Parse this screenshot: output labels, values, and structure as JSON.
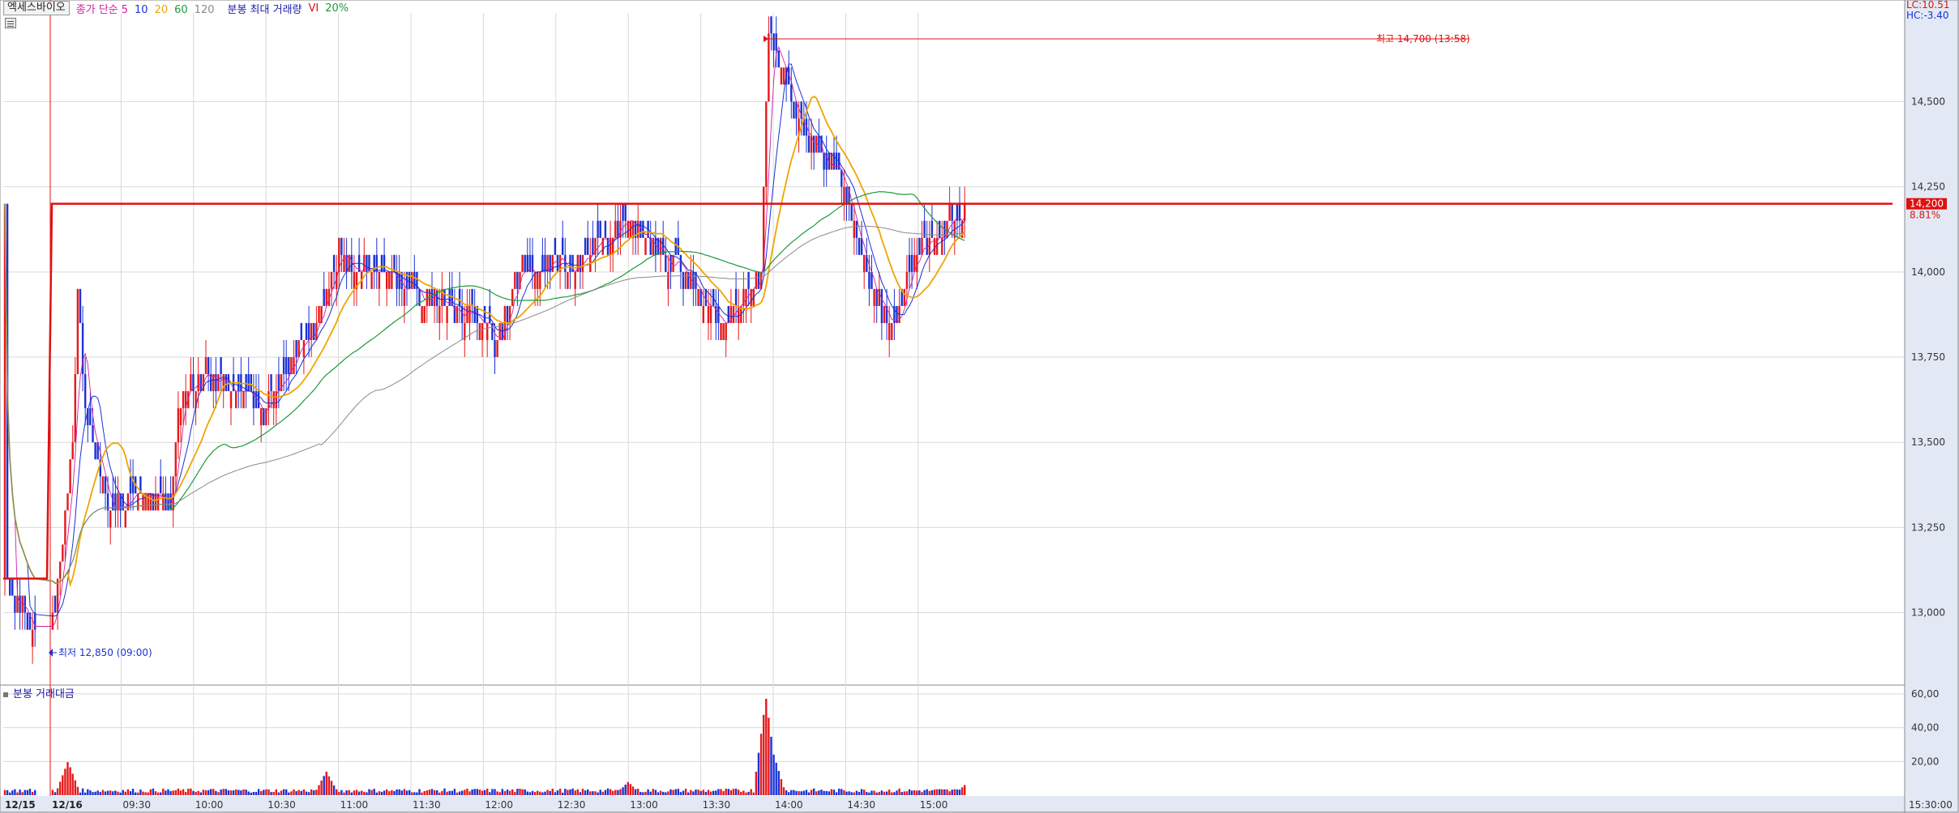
{
  "header": {
    "stock_name": "엑세스바이오",
    "ma_label": "종가 단순",
    "ma_periods": [
      "5",
      "10",
      "20",
      "60",
      "120"
    ],
    "volume_label": "분봉 최대 거래량",
    "vi_label": "VI",
    "vi_value": "20%"
  },
  "corner": {
    "lc": "LC:10.51",
    "hc": "HC:-3.40"
  },
  "annotations": {
    "high": "최고 14,700 (13:58)",
    "low": "최저 12,850 (09:00)",
    "current_price": "14,200",
    "current_change": "8.81%"
  },
  "volume_panel": {
    "title": "분봉 거래대금"
  },
  "colors": {
    "up": "#e8181a",
    "down": "#1b32d6",
    "ma5": "#d11fa2",
    "ma10": "#1b32d6",
    "ma20": "#f0a400",
    "ma60": "#1e9a3a",
    "ma120": "#8a8a8a",
    "hline": "#e01010",
    "grid": "#d9d9d9",
    "axis_bg": "#e3e9f4"
  },
  "chart_data": {
    "type": "candlestick",
    "title": "엑세스바이오",
    "interval": "1-minute",
    "price_axis": {
      "ticks": [
        "14,500",
        "14,250",
        "14,000",
        "13,750",
        "13,500",
        "13,250",
        "13,000"
      ],
      "ylim": [
        12790,
        14760
      ]
    },
    "time_axis": {
      "ticks": [
        "12/15",
        "12/16",
        "09:30",
        "10:00",
        "10:30",
        "11:00",
        "11:30",
        "12:00",
        "12:30",
        "13:00",
        "13:30",
        "14:00",
        "14:30",
        "15:00",
        "15:30:00"
      ]
    },
    "volume_axis": {
      "ticks": [
        "60,00",
        "40,00",
        "20,00"
      ],
      "ylim": [
        0,
        60
      ]
    },
    "previous_close": 13050,
    "high": 14700,
    "low": 12850,
    "last": 14200,
    "change_pct": 8.81,
    "price_path": [
      [
        "12/15",
        13100
      ],
      [
        "09:00",
        12850
      ],
      [
        "09:10",
        13500
      ],
      [
        "09:12",
        13950
      ],
      [
        "09:15",
        13600
      ],
      [
        "09:25",
        13300
      ],
      [
        "09:35",
        13350
      ],
      [
        "09:50",
        13300
      ],
      [
        "09:55",
        13650
      ],
      [
        "10:05",
        13700
      ],
      [
        "10:30",
        13600
      ],
      [
        "10:50",
        13850
      ],
      [
        "11:00",
        14050
      ],
      [
        "11:30",
        13950
      ],
      [
        "12:00",
        13850
      ],
      [
        "12:05",
        13780
      ],
      [
        "12:15",
        14000
      ],
      [
        "12:45",
        14050
      ],
      [
        "13:00",
        14150
      ],
      [
        "13:15",
        14050
      ],
      [
        "13:40",
        13850
      ],
      [
        "13:55",
        14000
      ],
      [
        "13:58",
        14700
      ],
      [
        "14:10",
        14450
      ],
      [
        "14:30",
        14250
      ],
      [
        "14:40",
        13950
      ],
      [
        "14:50",
        13850
      ],
      [
        "15:00",
        14050
      ],
      [
        "15:20",
        14200
      ]
    ],
    "volume_spikes": [
      [
        "09:08",
        20
      ],
      [
        "10:55",
        14
      ],
      [
        "13:00",
        8
      ],
      [
        "13:57",
        58
      ],
      [
        "14:00",
        25
      ],
      [
        "15:20",
        7
      ]
    ]
  }
}
